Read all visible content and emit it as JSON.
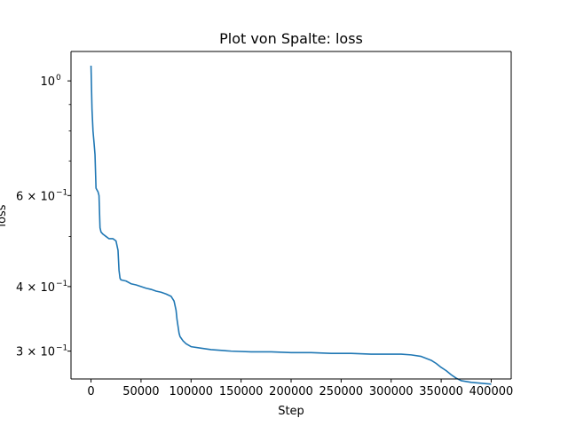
{
  "chart_data": {
    "type": "line",
    "title": "Plot von Spalte: loss",
    "xlabel": "Step",
    "ylabel": "loss",
    "xscale": "linear",
    "yscale": "log",
    "xlim": [
      -20000,
      420000
    ],
    "ylim": [
      0.265,
      1.14
    ],
    "grid": false,
    "legend": "none",
    "xticks": [
      0,
      50000,
      100000,
      150000,
      200000,
      250000,
      300000,
      350000,
      400000
    ],
    "xtick_labels": [
      "0",
      "50000",
      "100000",
      "150000",
      "200000",
      "250000",
      "300000",
      "350000",
      "400000"
    ],
    "yticks_major": [
      {
        "value": 1.0,
        "base": "10",
        "exp": "0"
      },
      {
        "value": 0.6,
        "base": "6 × 10",
        "exp": "−1"
      },
      {
        "value": 0.4,
        "base": "4 × 10",
        "exp": "−1"
      },
      {
        "value": 0.3,
        "base": "3 × 10",
        "exp": "−1"
      }
    ],
    "yticks_minor": [
      0.9,
      0.8,
      0.7,
      0.5
    ],
    "series": [
      {
        "color": "#1f77b4",
        "x": [
          0,
          1000,
          2000,
          3000,
          4000,
          5000,
          6000,
          7000,
          8000,
          9000,
          10000,
          12000,
          15000,
          18000,
          22000,
          25000,
          27000,
          28000,
          29000,
          30000,
          35000,
          40000,
          45000,
          50000,
          55000,
          60000,
          65000,
          70000,
          75000,
          80000,
          83000,
          85000,
          86000,
          87000,
          88000,
          89000,
          90000,
          92000,
          95000,
          100000,
          110000,
          120000,
          140000,
          160000,
          180000,
          200000,
          220000,
          240000,
          260000,
          280000,
          300000,
          310000,
          320000,
          330000,
          340000,
          345000,
          350000,
          355000,
          360000,
          365000,
          370000,
          380000,
          390000,
          400000
        ],
        "y": [
          1.07,
          0.88,
          0.8,
          0.76,
          0.72,
          0.62,
          0.615,
          0.61,
          0.6,
          0.52,
          0.51,
          0.505,
          0.5,
          0.495,
          0.495,
          0.49,
          0.47,
          0.43,
          0.415,
          0.412,
          0.41,
          0.405,
          0.403,
          0.4,
          0.397,
          0.395,
          0.392,
          0.39,
          0.387,
          0.383,
          0.375,
          0.36,
          0.345,
          0.335,
          0.325,
          0.32,
          0.318,
          0.314,
          0.31,
          0.306,
          0.304,
          0.302,
          0.3,
          0.299,
          0.299,
          0.298,
          0.298,
          0.297,
          0.297,
          0.296,
          0.296,
          0.296,
          0.295,
          0.293,
          0.288,
          0.284,
          0.279,
          0.275,
          0.27,
          0.266,
          0.263,
          0.261,
          0.26,
          0.259
        ]
      }
    ]
  }
}
